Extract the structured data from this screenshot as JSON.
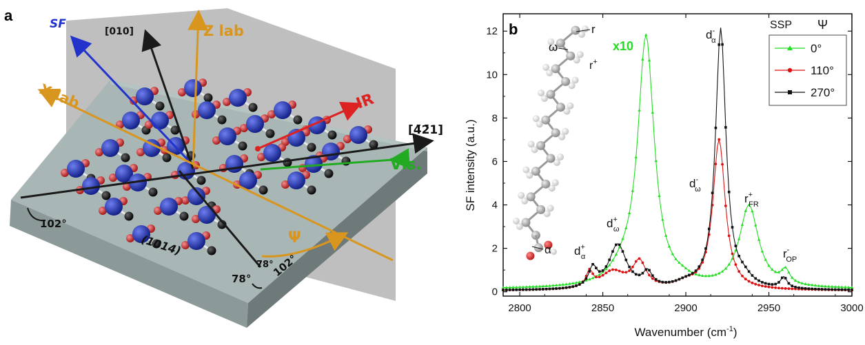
{
  "panel_a": {
    "letter": "a",
    "axis_labels": {
      "sf": "SF",
      "zlab": "Z lab",
      "xlab": "X lab",
      "ir": "IR",
      "vis": "Vis.",
      "dir010": "[010]",
      "dir421": "[4̄2̄1]",
      "face": "(1014)",
      "psi": "Ψ"
    },
    "angles": {
      "left": "102°",
      "right": "102°",
      "top": "78°",
      "bottom": "78°"
    },
    "colors": {
      "calcium": "#2233aa",
      "oxygen": "#cc3333",
      "carbon": "#1a1a1a",
      "slab": "#9aa8a8",
      "plane": "#b4b4b4",
      "sf_arrow": "#2233cc",
      "lab_arrow": "#d9961e",
      "ir_arrow": "#dd2222",
      "vis_arrow": "#22aa22"
    }
  },
  "panel_b": {
    "letter": "b",
    "legend": {
      "title_ssp": "SSP",
      "title_psi": "Ψ"
    },
    "annotations": {
      "x10": "x10",
      "r_plus": "r",
      "r_plus_sup": "+",
      "d_alpha_minus": "d",
      "d_alpha_minus_sup": "-",
      "d_alpha_minus_sub": "α",
      "d_omega_minus": "d",
      "d_omega_minus_sup": "-",
      "d_omega_minus_sub": "ω",
      "r_fr_plus": "r",
      "r_fr_plus_sup": "+",
      "r_fr_plus_sub": "FR",
      "r_op_minus": "r",
      "r_op_minus_sup": "-",
      "r_op_minus_sub": "OP",
      "d_omega_plus": "d",
      "d_omega_plus_sup": "+",
      "d_omega_plus_sub": "ω",
      "d_alpha_plus": "d",
      "d_alpha_plus_sup": "+",
      "d_alpha_plus_sub": "α",
      "mol_r": "r",
      "mol_omega": "ω",
      "mol_alpha": "α"
    }
  },
  "chart_data": {
    "type": "line",
    "xlabel": "Wavenumber (cm",
    "xlabel_sup": "-1",
    "xlabel_close": ")",
    "ylabel": "SF intensity (a.u.)",
    "xlim": [
      2790,
      3000
    ],
    "ylim": [
      -0.2,
      12.8
    ],
    "xticks": [
      2800,
      2850,
      2900,
      2950,
      3000
    ],
    "yticks": [
      0,
      2,
      4,
      6,
      8,
      10,
      12
    ],
    "grid": false,
    "legend_position": "top-right",
    "series": [
      {
        "name": "0°",
        "color": "#22dd22",
        "marker": "triangle",
        "peaks": [
          [
            2876,
            11.5,
            6
          ],
          [
            2938,
            3.75,
            7
          ],
          [
            2960,
            0.6,
            3
          ],
          [
            2898,
            0.15,
            6
          ],
          [
            2862,
            0.5,
            9
          ]
        ],
        "baseline": 0.12
      },
      {
        "name": "110°",
        "color": "#dd1111",
        "marker": "circle",
        "peaks": [
          [
            2920,
            6.9,
            4.5
          ],
          [
            2842,
            0.7,
            2.5
          ],
          [
            2856,
            0.8,
            9
          ],
          [
            2872,
            1.2,
            5
          ],
          [
            2900,
            0.25,
            8
          ]
        ],
        "baseline": 0.05
      },
      {
        "name": "270°",
        "color": "#111111",
        "marker": "square",
        "peaks": [
          [
            2921,
            12.0,
            3.8
          ],
          [
            2859,
            2.05,
            6.5
          ],
          [
            2844,
            0.85,
            3
          ],
          [
            2877,
            0.65,
            3.5
          ],
          [
            2959,
            0.5,
            2.5
          ],
          [
            2935,
            0.35,
            6
          ],
          [
            2900,
            0.2,
            8
          ]
        ],
        "baseline": 0.05
      }
    ]
  }
}
